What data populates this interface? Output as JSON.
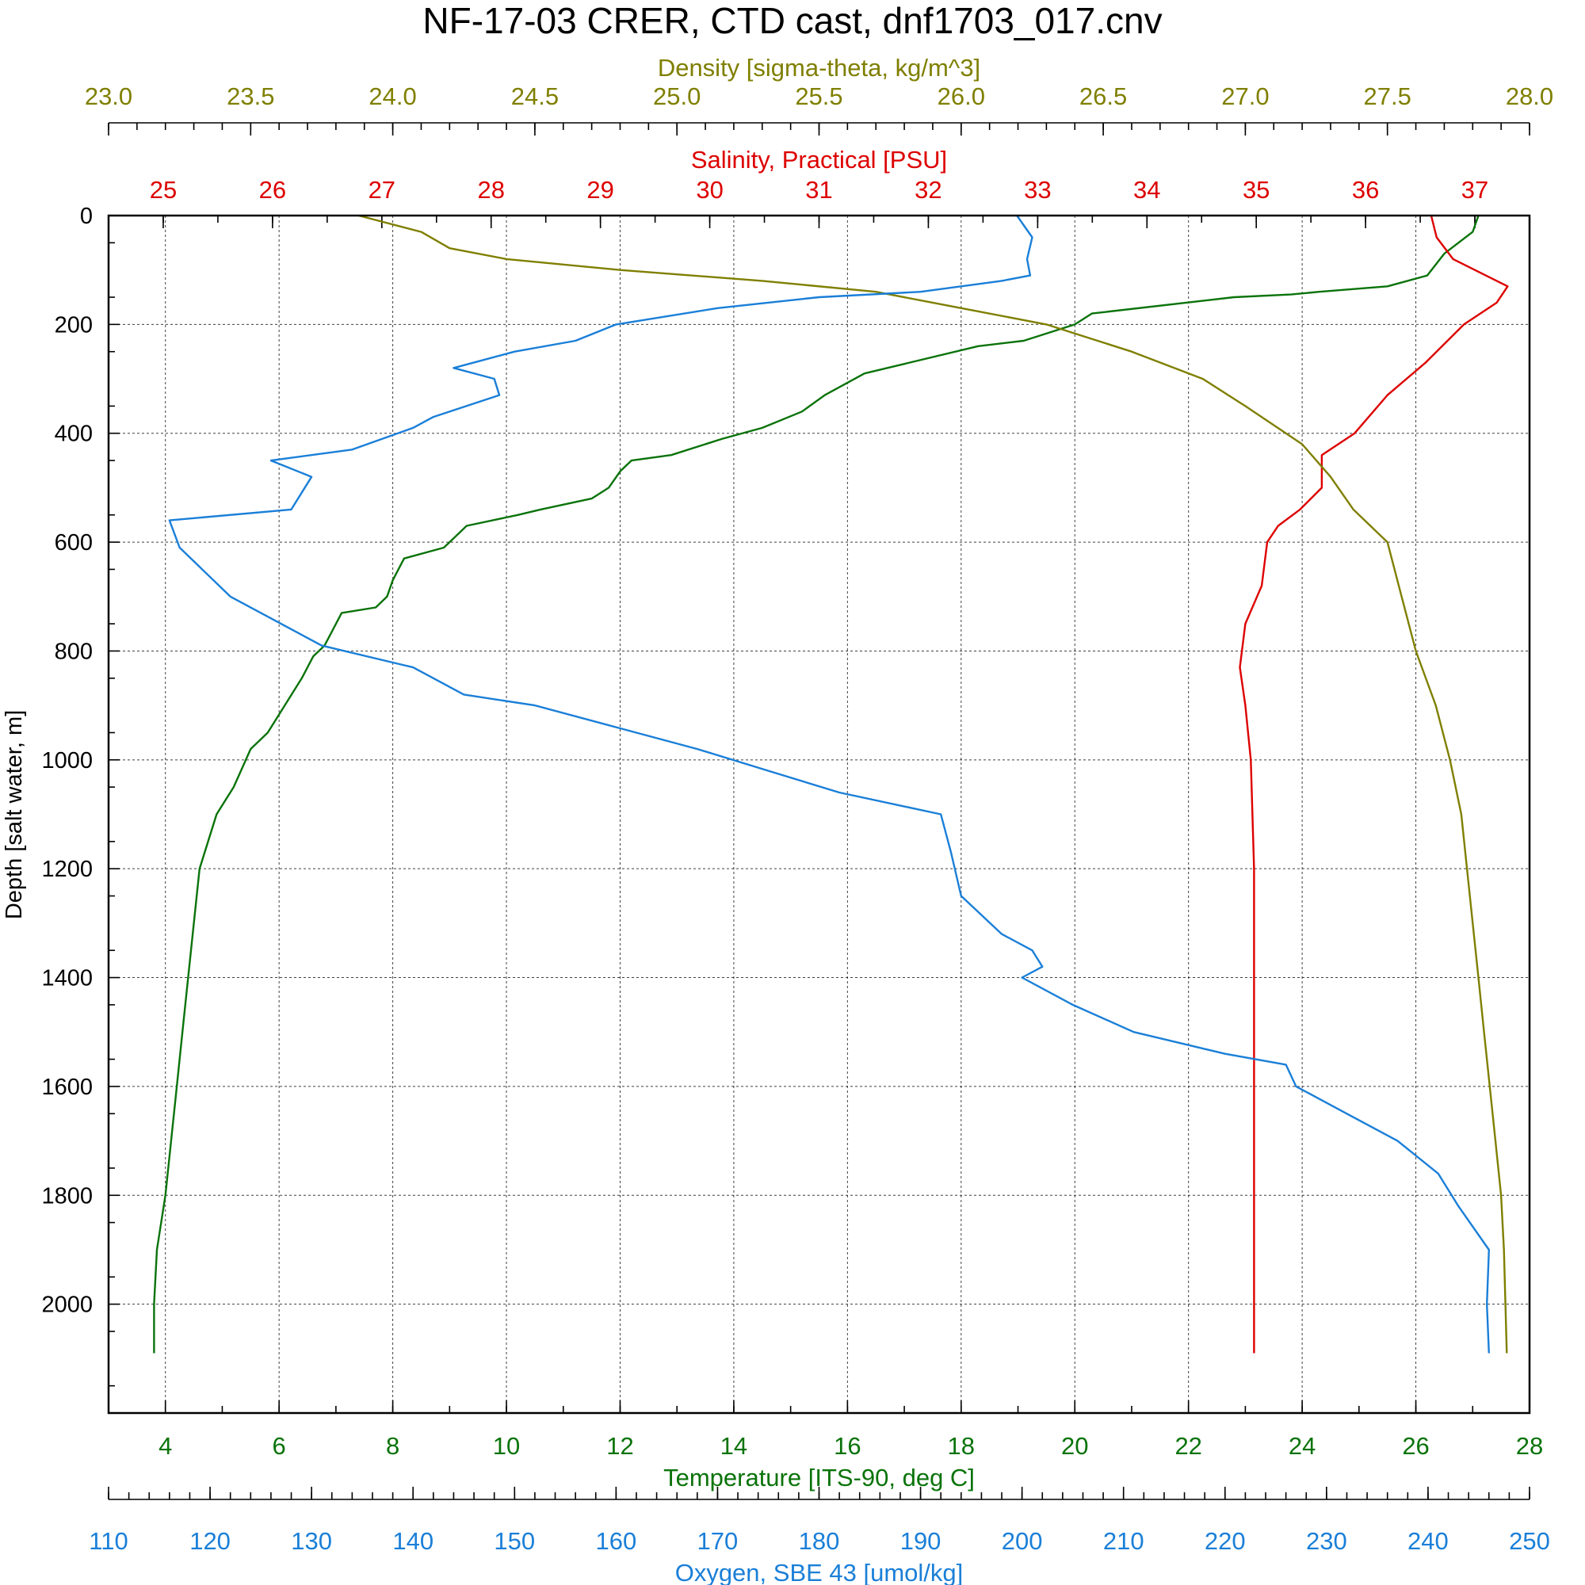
{
  "chart_data": {
    "type": "line",
    "title": "NF-17-03 CRER, CTD cast, dnf1703_017.cnv",
    "grid": true,
    "colors": {
      "density": "#7f7f00",
      "salinity": "#dd0000",
      "temperature": "#0a730a",
      "oxygen": "#1a7fd8"
    },
    "y_axis": {
      "label": "Depth [salt water, m]",
      "range": [
        0,
        2200
      ],
      "inverted": true,
      "ticks": [
        "0",
        "200",
        "400",
        "600",
        "800",
        "1000",
        "1200",
        "1400",
        "1600",
        "1800",
        "2000"
      ]
    },
    "x_axes": [
      {
        "id": "density",
        "position": "top-outer",
        "label": "Density [sigma-theta, kg/m^3]",
        "range": [
          23.0,
          28.0
        ],
        "ticks": [
          "23.0",
          "23.5",
          "24.0",
          "24.5",
          "25.0",
          "25.5",
          "26.0",
          "26.5",
          "27.0",
          "27.5",
          "28.0"
        ]
      },
      {
        "id": "salinity",
        "position": "top-inner",
        "label": "Salinity, Practical [PSU]",
        "range": [
          24.5,
          37.5
        ],
        "ticks": [
          "25",
          "26",
          "27",
          "28",
          "29",
          "30",
          "31",
          "32",
          "33",
          "34",
          "35",
          "36",
          "37"
        ]
      },
      {
        "id": "temperature",
        "position": "bottom-inner",
        "label": "Temperature [ITS-90, deg C]",
        "range": [
          3,
          28
        ],
        "ticks": [
          "4",
          "6",
          "8",
          "10",
          "12",
          "14",
          "16",
          "18",
          "20",
          "22",
          "24",
          "26",
          "28"
        ]
      },
      {
        "id": "oxygen",
        "position": "bottom-outer",
        "label": "Oxygen, SBE 43 [umol/kg]",
        "range": [
          110,
          250
        ],
        "ticks": [
          "110",
          "120",
          "130",
          "140",
          "150",
          "160",
          "170",
          "180",
          "190",
          "200",
          "210",
          "220",
          "230",
          "240",
          "250"
        ]
      }
    ],
    "series": [
      {
        "axis": "temperature",
        "color": "#0a730a",
        "points": [
          [
            27.1,
            0
          ],
          [
            27.0,
            30
          ],
          [
            26.5,
            70
          ],
          [
            26.2,
            110
          ],
          [
            25.5,
            130
          ],
          [
            24.3,
            140
          ],
          [
            23.8,
            145
          ],
          [
            22.8,
            150
          ],
          [
            20.3,
            180
          ],
          [
            20.0,
            200
          ],
          [
            19.1,
            230
          ],
          [
            18.3,
            240
          ],
          [
            16.3,
            290
          ],
          [
            15.6,
            330
          ],
          [
            15.2,
            360
          ],
          [
            14.5,
            390
          ],
          [
            13.8,
            410
          ],
          [
            12.9,
            440
          ],
          [
            12.2,
            450
          ],
          [
            12.0,
            470
          ],
          [
            11.8,
            500
          ],
          [
            11.5,
            520
          ],
          [
            10.6,
            540
          ],
          [
            10.2,
            550
          ],
          [
            9.3,
            570
          ],
          [
            9.1,
            590
          ],
          [
            8.9,
            610
          ],
          [
            8.2,
            630
          ],
          [
            8.0,
            670
          ],
          [
            7.9,
            700
          ],
          [
            7.7,
            720
          ],
          [
            7.1,
            730
          ],
          [
            6.9,
            770
          ],
          [
            6.8,
            790
          ],
          [
            6.6,
            810
          ],
          [
            6.4,
            850
          ],
          [
            6.1,
            900
          ],
          [
            5.8,
            950
          ],
          [
            5.5,
            980
          ],
          [
            5.2,
            1050
          ],
          [
            4.9,
            1100
          ],
          [
            4.6,
            1200
          ],
          [
            4.5,
            1300
          ],
          [
            4.4,
            1400
          ],
          [
            4.3,
            1500
          ],
          [
            4.2,
            1600
          ],
          [
            4.1,
            1700
          ],
          [
            4.0,
            1800
          ],
          [
            3.85,
            1900
          ],
          [
            3.8,
            2000
          ],
          [
            3.8,
            2090
          ]
        ]
      },
      {
        "axis": "salinity",
        "color": "#dd0000",
        "points": [
          [
            36.6,
            0
          ],
          [
            36.65,
            40
          ],
          [
            36.8,
            80
          ],
          [
            37.1,
            110
          ],
          [
            37.3,
            130
          ],
          [
            37.2,
            160
          ],
          [
            36.9,
            200
          ],
          [
            36.55,
            270
          ],
          [
            36.2,
            330
          ],
          [
            35.9,
            400
          ],
          [
            35.6,
            440
          ],
          [
            35.6,
            500
          ],
          [
            35.4,
            540
          ],
          [
            35.2,
            570
          ],
          [
            35.1,
            600
          ],
          [
            35.05,
            680
          ],
          [
            34.9,
            750
          ],
          [
            34.85,
            830
          ],
          [
            34.9,
            900
          ],
          [
            34.95,
            1000
          ],
          [
            34.98,
            1200
          ],
          [
            34.98,
            1600
          ],
          [
            34.98,
            2090
          ]
        ]
      },
      {
        "axis": "density",
        "color": "#7f7f00",
        "points": [
          [
            23.88,
            0
          ],
          [
            24.1,
            30
          ],
          [
            24.2,
            60
          ],
          [
            24.4,
            80
          ],
          [
            24.8,
            100
          ],
          [
            25.3,
            120
          ],
          [
            25.7,
            140
          ],
          [
            26.0,
            170
          ],
          [
            26.3,
            200
          ],
          [
            26.6,
            250
          ],
          [
            26.85,
            300
          ],
          [
            27.0,
            350
          ],
          [
            27.2,
            420
          ],
          [
            27.3,
            480
          ],
          [
            27.38,
            540
          ],
          [
            27.5,
            600
          ],
          [
            27.55,
            700
          ],
          [
            27.6,
            800
          ],
          [
            27.67,
            900
          ],
          [
            27.72,
            1000
          ],
          [
            27.76,
            1100
          ],
          [
            27.78,
            1200
          ],
          [
            27.8,
            1300
          ],
          [
            27.82,
            1400
          ],
          [
            27.84,
            1500
          ],
          [
            27.86,
            1600
          ],
          [
            27.88,
            1700
          ],
          [
            27.9,
            1800
          ],
          [
            27.91,
            1900
          ],
          [
            27.92,
            2090
          ]
        ]
      },
      {
        "axis": "oxygen",
        "color": "#1a7fd8",
        "points": [
          [
            199.5,
            0
          ],
          [
            201,
            40
          ],
          [
            200.5,
            80
          ],
          [
            200.8,
            110
          ],
          [
            198,
            120
          ],
          [
            190,
            140
          ],
          [
            180,
            150
          ],
          [
            170,
            170
          ],
          [
            160,
            200
          ],
          [
            156,
            230
          ],
          [
            150,
            250
          ],
          [
            144,
            280
          ],
          [
            148,
            300
          ],
          [
            148.5,
            330
          ],
          [
            142,
            370
          ],
          [
            140,
            390
          ],
          [
            134,
            430
          ],
          [
            126,
            450
          ],
          [
            130,
            480
          ],
          [
            128,
            540
          ],
          [
            116,
            560
          ],
          [
            117,
            610
          ],
          [
            122,
            700
          ],
          [
            131,
            790
          ],
          [
            140,
            830
          ],
          [
            145,
            880
          ],
          [
            152,
            900
          ],
          [
            162,
            950
          ],
          [
            168,
            980
          ],
          [
            175,
            1020
          ],
          [
            182,
            1060
          ],
          [
            192,
            1100
          ],
          [
            193,
            1170
          ],
          [
            194,
            1250
          ],
          [
            198,
            1320
          ],
          [
            201,
            1350
          ],
          [
            202,
            1380
          ],
          [
            200,
            1400
          ],
          [
            205,
            1450
          ],
          [
            211,
            1500
          ],
          [
            220,
            1540
          ],
          [
            226,
            1560
          ],
          [
            227,
            1600
          ],
          [
            232,
            1650
          ],
          [
            237,
            1700
          ],
          [
            241,
            1760
          ],
          [
            243,
            1820
          ],
          [
            246,
            1900
          ],
          [
            245.8,
            2000
          ],
          [
            246,
            2090
          ]
        ]
      }
    ]
  }
}
